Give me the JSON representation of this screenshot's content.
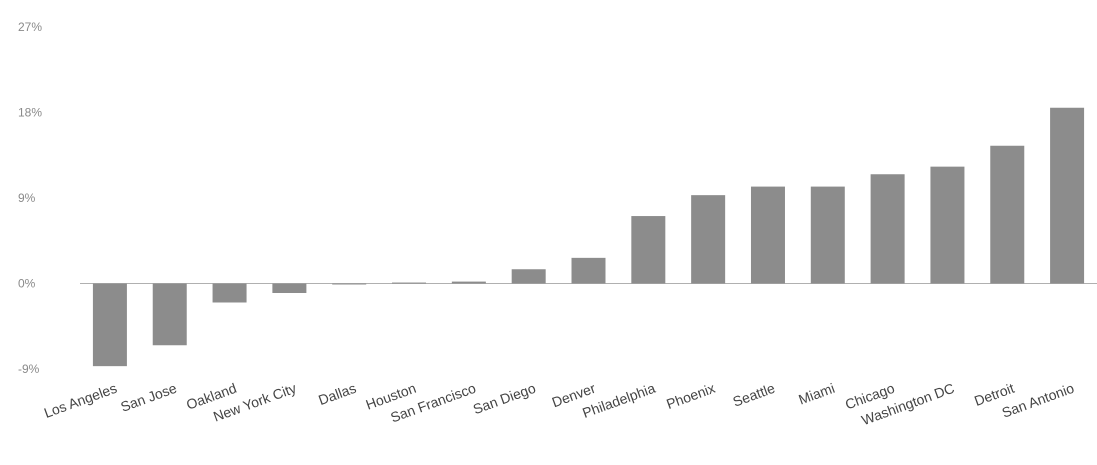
{
  "chart_data": {
    "type": "bar",
    "title": "",
    "xlabel": "",
    "ylabel": "",
    "ylim": [
      -9,
      27
    ],
    "yticks": [
      -9,
      0,
      9,
      18,
      27
    ],
    "ytick_labels": [
      "-9%",
      "0%",
      "9%",
      "18%",
      "27%"
    ],
    "grid": false,
    "categories": [
      "Los Angeles",
      "San Jose",
      "Oakland",
      "New York City",
      "Dallas",
      "Houston",
      "San Francisco",
      "San Diego",
      "Denver",
      "Philadelphia",
      "Phoenix",
      "Seattle",
      "Miami",
      "Chicago",
      "Washington DC",
      "Detroit",
      "San Antonio"
    ],
    "values": [
      -8.7,
      -6.5,
      -2.0,
      -1.0,
      -0.1,
      0.1,
      0.2,
      1.5,
      2.7,
      7.1,
      9.3,
      10.2,
      10.2,
      11.5,
      12.3,
      14.5,
      18.5
    ],
    "colors": {
      "bar": "#8c8c8c",
      "axis": "#b0b0b0",
      "tick_text": "#8a8a8a",
      "category_text": "#444444"
    }
  }
}
